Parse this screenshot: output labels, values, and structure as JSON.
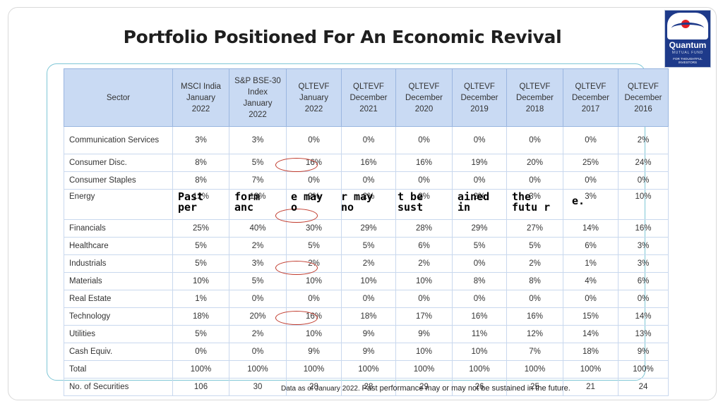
{
  "title": "Portfolio Positioned For An Economic Revival",
  "logo": {
    "name": "Quantum",
    "sub": "MUTUAL FUND",
    "tag": "FOR THOUGHTFUL INVESTORS"
  },
  "table": {
    "headers": [
      "Sector",
      "MSCI India January 2022",
      "S&P BSE-30 Index January 2022",
      "QLTEVF January 2022",
      "QLTEVF December 2021",
      "QLTEVF December 2020",
      "QLTEVF December 2019",
      "QLTEVF December 2018",
      "QLTEVF December 2017",
      "QLTEVF December 2016"
    ],
    "rows": [
      [
        "Communication Services",
        "3%",
        "3%",
        "0%",
        "0%",
        "0%",
        "0%",
        "0%",
        "0%",
        "2%"
      ],
      [
        "Consumer Disc.",
        "8%",
        "5%",
        "16%",
        "16%",
        "16%",
        "19%",
        "20%",
        "25%",
        "24%"
      ],
      [
        "Consumer Staples",
        "8%",
        "7%",
        "0%",
        "0%",
        "0%",
        "0%",
        "0%",
        "0%",
        "0%"
      ],
      [
        "Energy",
        "12%",
        "13%",
        "2%",
        "2%",
        "2%",
        "2%",
        "3%",
        "3%",
        "10%"
      ],
      [
        "Financials",
        "25%",
        "40%",
        "30%",
        "29%",
        "28%",
        "29%",
        "27%",
        "14%",
        "16%"
      ],
      [
        "Healthcare",
        "5%",
        "2%",
        "5%",
        "5%",
        "6%",
        "5%",
        "5%",
        "6%",
        "3%"
      ],
      [
        "Industrials",
        "5%",
        "3%",
        "2%",
        "2%",
        "2%",
        "0%",
        "2%",
        "1%",
        "3%"
      ],
      [
        "Materials",
        "10%",
        "5%",
        "10%",
        "10%",
        "10%",
        "8%",
        "8%",
        "4%",
        "6%"
      ],
      [
        "Real Estate",
        "1%",
        "0%",
        "0%",
        "0%",
        "0%",
        "0%",
        "0%",
        "0%",
        "0%"
      ],
      [
        "Technology",
        "18%",
        "20%",
        "16%",
        "18%",
        "17%",
        "16%",
        "16%",
        "15%",
        "14%"
      ],
      [
        "Utilities",
        "5%",
        "2%",
        "10%",
        "9%",
        "9%",
        "11%",
        "12%",
        "14%",
        "13%"
      ],
      [
        "Cash Equiv.",
        "0%",
        "0%",
        "9%",
        "9%",
        "10%",
        "10%",
        "7%",
        "18%",
        "9%"
      ],
      [
        "Total",
        "100%",
        "100%",
        "100%",
        "100%",
        "100%",
        "100%",
        "100%",
        "100%",
        "100%"
      ],
      [
        "No. of Securities",
        "106",
        "30",
        "28",
        "28",
        "29",
        "26",
        "25",
        "21",
        "24"
      ]
    ]
  },
  "overlay_fragments": [
    "Past per",
    "form anc",
    "e may o",
    "r may no",
    "t be sust",
    "ained in",
    "the futu r",
    "e."
  ],
  "footnote": {
    "prefix": "Data as of January 2022. ",
    "main": "Past performance may or may not be sustained in the future."
  },
  "colors": {
    "header_bg": "#c9daf3",
    "circle": "#c0392b",
    "frame": "#7fc7d6",
    "logo_bg": "#1e3a8a"
  }
}
